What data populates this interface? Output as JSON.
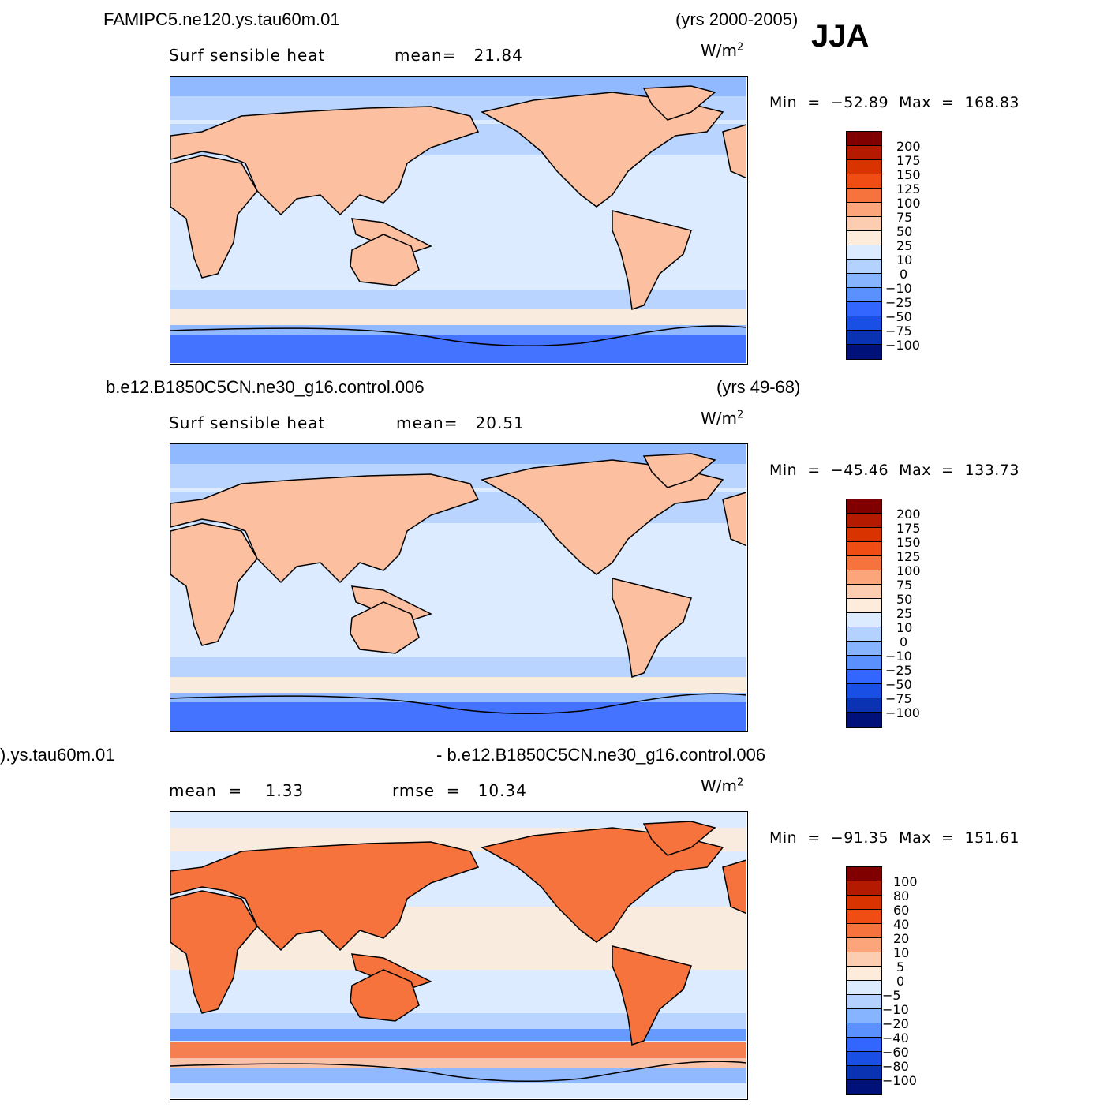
{
  "season": "JJA",
  "units_base": "W/m",
  "units_exp": "2",
  "panels": [
    {
      "title_left": "FAMIPC5.ne120.ys.tau60m.01",
      "title_right": "(yrs 2000-2005)",
      "sub_label": "Surf sensible heat",
      "stat1": "mean=   21.84",
      "stat2": "",
      "minmax": "Min  =  −52.89  Max  =  168.83",
      "colorbar_labels": [
        "200",
        "175",
        "150",
        "125",
        "100",
        "75",
        "50",
        "25",
        "10",
        "0",
        "−10",
        "−25",
        "−50",
        "−75",
        "−100"
      ]
    },
    {
      "title_left": "b.e12.B1850C5CN.ne30_g16.control.006",
      "title_right": "(yrs 49-68)",
      "sub_label": "Surf sensible heat",
      "stat1": "mean=   20.51",
      "stat2": "",
      "minmax": "Min  =  −45.46  Max  =  133.73",
      "colorbar_labels": [
        "200",
        "175",
        "150",
        "125",
        "100",
        "75",
        "50",
        "25",
        "10",
        "0",
        "−10",
        "−25",
        "−50",
        "−75",
        "−100"
      ]
    },
    {
      "title_left": ").ys.tau60m.01",
      "title_right": "- b.e12.B1850C5CN.ne30_g16.control.006",
      "sub_label": "mean  =    1.33",
      "stat1": "rmse  =   10.34",
      "stat2": "",
      "minmax": "Min  =  −91.35  Max  =  151.61",
      "colorbar_labels": [
        "100",
        "80",
        "60",
        "40",
        "20",
        "10",
        "5",
        "0",
        "−5",
        "−10",
        "−20",
        "−40",
        "−60",
        "−80",
        "−100"
      ]
    }
  ],
  "colors": {
    "abs_scale": [
      "#800000",
      "#b31a00",
      "#d93300",
      "#f04d14",
      "#f7733d",
      "#fca47a",
      "#fdcdb2",
      "#fdebdc",
      "#dcebff",
      "#b4d2ff",
      "#87b4ff",
      "#5a91ff",
      "#3366ff",
      "#1a4fe6",
      "#0a33b3",
      "#00127a"
    ],
    "diff_scale": [
      "#800000",
      "#b31a00",
      "#d93300",
      "#f04d14",
      "#f7733d",
      "#fca47a",
      "#fdcdb2",
      "#fdebdc",
      "#dcebff",
      "#b4d2ff",
      "#87b4ff",
      "#5a91ff",
      "#3366ff",
      "#1a4fe6",
      "#0a33b3",
      "#00127a"
    ],
    "ocean": "#dcebff",
    "land": "#fcbfa0",
    "coast": "#000000"
  },
  "chart_data": [
    {
      "type": "heatmap",
      "title": "FAMIPC5.ne120.ys.tau60m.01",
      "subtitle": "Surf sensible heat",
      "period": "(yrs 2000-2005)",
      "mean": 21.84,
      "min": -52.89,
      "max": 168.83,
      "units": "W/m2",
      "colorbar_levels": [
        200,
        175,
        150,
        125,
        100,
        75,
        50,
        25,
        10,
        0,
        -10,
        -25,
        -50,
        -75,
        -100
      ]
    },
    {
      "type": "heatmap",
      "title": "b.e12.B1850C5CN.ne30_g16.control.006",
      "subtitle": "Surf sensible heat",
      "period": "(yrs 49-68)",
      "mean": 20.51,
      "min": -45.46,
      "max": 133.73,
      "units": "W/m2",
      "colorbar_levels": [
        200,
        175,
        150,
        125,
        100,
        75,
        50,
        25,
        10,
        0,
        -10,
        -25,
        -50,
        -75,
        -100
      ]
    },
    {
      "type": "heatmap",
      "title": "- b.e12.B1850C5CN.ne30_g16.control.006",
      "mean": 1.33,
      "rmse": 10.34,
      "min": -91.35,
      "max": 151.61,
      "units": "W/m2",
      "colorbar_levels": [
        100,
        80,
        60,
        40,
        20,
        10,
        5,
        0,
        -5,
        -10,
        -20,
        -40,
        -60,
        -80,
        -100
      ]
    }
  ]
}
